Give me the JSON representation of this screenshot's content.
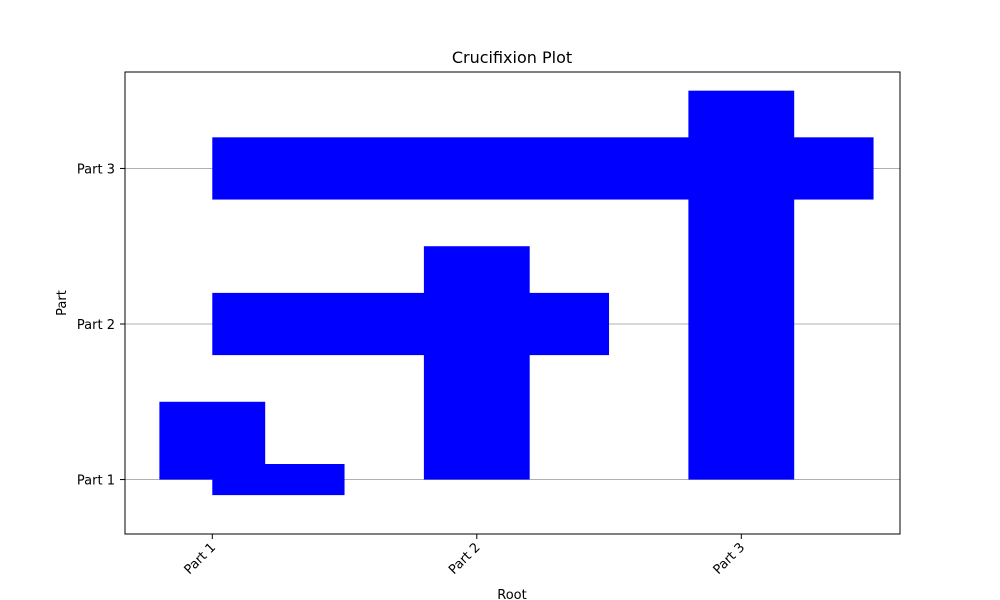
{
  "chart_data": {
    "type": "bar",
    "title": "Crucifixion Plot",
    "xlabel": "Root",
    "ylabel": "Part",
    "x_categories": [
      "Part 1",
      "Part 2",
      "Part 3"
    ],
    "y_categories": [
      "Part 1",
      "Part 2",
      "Part 3"
    ],
    "xlim": [
      -0.33,
      2.6
    ],
    "ylim": [
      -0.35,
      2.62
    ],
    "grid": "horizontal",
    "color": "#0000ff",
    "horizontal_bars": [
      {
        "y": 0,
        "left": 0,
        "width": 0.5,
        "height": 0.2
      },
      {
        "y": 1,
        "left": 0,
        "width": 1.5,
        "height": 0.4
      },
      {
        "y": 2,
        "left": 0,
        "width": 2.5,
        "height": 0.4
      }
    ],
    "vertical_bars": [
      {
        "x": 0,
        "bottom": 0,
        "height": 0.5,
        "width": 0.4
      },
      {
        "x": 1,
        "bottom": 0,
        "height": 1.5,
        "width": 0.4
      },
      {
        "x": 2,
        "bottom": 0,
        "height": 2.5,
        "width": 0.4
      }
    ]
  }
}
